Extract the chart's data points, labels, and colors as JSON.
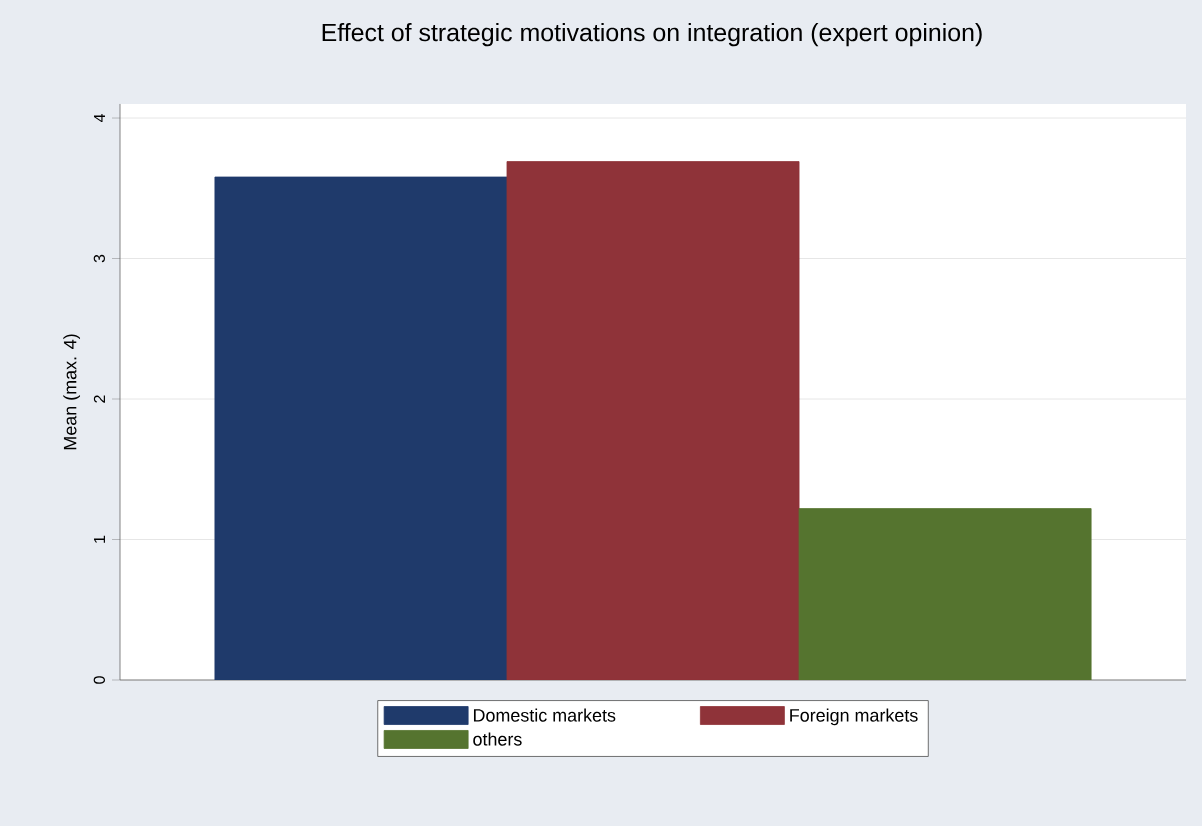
{
  "chart_data": {
    "type": "bar",
    "title": "Effect of strategic motivations on integration (expert opinion)",
    "ylabel": "Mean (max. 4)",
    "categories": [
      null
    ],
    "series": [
      {
        "name": "Domestic markets",
        "color": "#1f3a6b",
        "values": [
          3.58
        ]
      },
      {
        "name": "Foreign markets",
        "color": "#8f3339",
        "values": [
          3.69
        ]
      },
      {
        "name": "others",
        "color": "#55742f",
        "values": [
          1.22
        ]
      }
    ],
    "ylim": [
      0,
      4.1
    ],
    "yticks": [
      0,
      1,
      2,
      3,
      4
    ],
    "grid": "y",
    "legend": "bottom"
  }
}
